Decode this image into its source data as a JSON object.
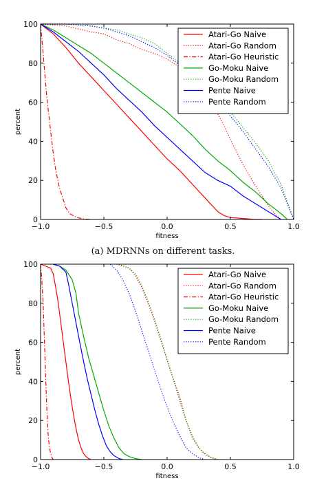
{
  "caption": "(a) MDRNNs on different tasks.",
  "chart_data": [
    {
      "type": "line",
      "xlabel": "fitness",
      "ylabel": "percent",
      "xlim": [
        -1.0,
        1.0
      ],
      "ylim": [
        0,
        100
      ],
      "xticks": [
        "−1.0",
        "−0.5",
        "0.0",
        "0.5",
        "1.0"
      ],
      "yticks": [
        "0",
        "20",
        "40",
        "60",
        "80",
        "100"
      ],
      "grid": false,
      "legend_position": "top-right",
      "series": [
        {
          "name": "Atari-Go Naive",
          "color": "#ff0000",
          "style": "solid",
          "x": [
            -1.0,
            -0.9,
            -0.8,
            -0.7,
            -0.6,
            -0.5,
            -0.4,
            -0.3,
            -0.2,
            -0.1,
            0.0,
            0.1,
            0.2,
            0.3,
            0.4,
            0.45,
            0.5,
            0.6,
            0.7,
            0.75
          ],
          "y": [
            100,
            95,
            88,
            80,
            73,
            66,
            59,
            52,
            45,
            38,
            31,
            25,
            18,
            11,
            4,
            2,
            1,
            0.5,
            0,
            0
          ]
        },
        {
          "name": "Atari-Go Random",
          "color": "#ff0000",
          "style": "dotted",
          "x": [
            -1.0,
            -0.8,
            -0.6,
            -0.5,
            -0.4,
            -0.3,
            -0.2,
            -0.1,
            0.0,
            0.1,
            0.2,
            0.3,
            0.35,
            0.4,
            0.45,
            0.5,
            0.6,
            0.7,
            0.8,
            0.85,
            0.9
          ],
          "y": [
            100,
            99,
            96,
            95,
            92,
            90,
            87,
            85,
            82,
            78,
            72,
            63,
            58,
            54,
            48,
            41,
            28,
            17,
            7,
            3,
            0
          ]
        },
        {
          "name": "Atari-Go Heuristic",
          "color": "#ff0000",
          "style": "dashdot",
          "x": [
            -1.0,
            -0.98,
            -0.95,
            -0.92,
            -0.9,
            -0.88,
            -0.85,
            -0.82,
            -0.8,
            -0.77,
            -0.73,
            -0.7,
            -0.65,
            -0.6
          ],
          "y": [
            100,
            85,
            62,
            45,
            34,
            25,
            16,
            10,
            6,
            3,
            1.5,
            0.8,
            0.2,
            0
          ]
        },
        {
          "name": "Go-Moku Naive",
          "color": "#00aa00",
          "style": "solid",
          "x": [
            -1.0,
            -0.9,
            -0.8,
            -0.7,
            -0.6,
            -0.5,
            -0.4,
            -0.3,
            -0.2,
            -0.1,
            0.0,
            0.1,
            0.2,
            0.3,
            0.4,
            0.5,
            0.6,
            0.7,
            0.8,
            0.9,
            0.95
          ],
          "y": [
            100,
            97,
            93,
            89,
            85,
            80,
            75,
            70,
            65,
            60,
            55,
            49,
            43,
            36,
            30,
            25,
            19,
            14,
            8,
            3,
            0
          ]
        },
        {
          "name": "Go-Moku Random",
          "color": "#00aa00",
          "style": "dotted",
          "x": [
            -1.0,
            -0.8,
            -0.6,
            -0.5,
            -0.4,
            -0.3,
            -0.2,
            -0.1,
            0.0,
            0.1,
            0.2,
            0.3,
            0.4,
            0.5,
            0.6,
            0.7,
            0.8,
            0.9,
            0.95,
            1.0
          ],
          "y": [
            100,
            100,
            99,
            98,
            97,
            95,
            93,
            90,
            85,
            80,
            76,
            70,
            62,
            55,
            47,
            39,
            30,
            18,
            9,
            0
          ]
        },
        {
          "name": "Pente Naive",
          "color": "#0000ff",
          "style": "solid",
          "x": [
            -1.0,
            -0.9,
            -0.8,
            -0.7,
            -0.6,
            -0.5,
            -0.4,
            -0.3,
            -0.2,
            -0.1,
            0.0,
            0.1,
            0.2,
            0.3,
            0.4,
            0.5,
            0.6,
            0.7,
            0.8,
            0.85,
            0.9
          ],
          "y": [
            100,
            96,
            91,
            86,
            80,
            74,
            67,
            61,
            55,
            48,
            42,
            36,
            30,
            24,
            20,
            17,
            12,
            8,
            4,
            2,
            0
          ]
        },
        {
          "name": "Pente Random",
          "color": "#0000ff",
          "style": "dotted",
          "x": [
            -1.0,
            -0.8,
            -0.6,
            -0.5,
            -0.4,
            -0.3,
            -0.2,
            -0.1,
            0.0,
            0.1,
            0.2,
            0.3,
            0.4,
            0.5,
            0.6,
            0.7,
            0.8,
            0.9,
            0.95,
            1.0
          ],
          "y": [
            100,
            100,
            99,
            98,
            96,
            94,
            91,
            88,
            84,
            79,
            74,
            68,
            61,
            53,
            45,
            36,
            27,
            16,
            8,
            0
          ]
        }
      ]
    },
    {
      "type": "line",
      "xlabel": "fitness",
      "ylabel": "percent",
      "xlim": [
        -1.0,
        1.0
      ],
      "ylim": [
        0,
        100
      ],
      "xticks": [
        "−1.0",
        "−0.5",
        "0.0",
        "0.5",
        "1.0"
      ],
      "yticks": [
        "0",
        "20",
        "40",
        "60",
        "80",
        "100"
      ],
      "grid": false,
      "legend_position": "top-right",
      "series": [
        {
          "name": "Atari-Go Naive",
          "color": "#ff0000",
          "style": "solid",
          "x": [
            -1.0,
            -0.92,
            -0.9,
            -0.88,
            -0.86,
            -0.84,
            -0.82,
            -0.8,
            -0.78,
            -0.76,
            -0.74,
            -0.72,
            -0.7,
            -0.68,
            -0.66,
            -0.64,
            -0.62,
            -0.6
          ],
          "y": [
            100,
            98,
            95,
            88,
            80,
            70,
            60,
            50,
            40,
            31,
            23,
            16,
            10,
            6,
            3,
            1.5,
            0.5,
            0
          ]
        },
        {
          "name": "Atari-Go Random",
          "color": "#ff0000",
          "style": "dotted",
          "x": [
            -0.4,
            -0.3,
            -0.25,
            -0.2,
            -0.15,
            -0.1,
            -0.05,
            0.0,
            0.05,
            0.1,
            0.15,
            0.2,
            0.25,
            0.3,
            0.35,
            0.4
          ],
          "y": [
            100,
            98,
            94,
            88,
            80,
            71,
            61,
            51,
            41,
            32,
            20,
            12,
            6,
            3,
            1,
            0
          ]
        },
        {
          "name": "Atari-Go Heuristic",
          "color": "#ff0000",
          "style": "dashdot",
          "x": [
            -1.0,
            -0.99,
            -0.98,
            -0.97,
            -0.96,
            -0.95,
            -0.94,
            -0.93,
            -0.92,
            -0.91,
            -0.9
          ],
          "y": [
            100,
            92,
            80,
            62,
            42,
            25,
            13,
            6,
            3,
            1,
            0
          ]
        },
        {
          "name": "Go-Moku Naive",
          "color": "#00aa00",
          "style": "solid",
          "x": [
            -0.9,
            -0.85,
            -0.8,
            -0.75,
            -0.72,
            -0.7,
            -0.66,
            -0.62,
            -0.58,
            -0.54,
            -0.5,
            -0.46,
            -0.42,
            -0.38,
            -0.34,
            -0.3,
            -0.25,
            -0.2
          ],
          "y": [
            100,
            99,
            97,
            92,
            85,
            75,
            63,
            52,
            43,
            34,
            25,
            17,
            11,
            6,
            3,
            1.5,
            0.5,
            0
          ]
        },
        {
          "name": "Go-Moku Random",
          "color": "#00aa00",
          "style": "dotted",
          "x": [
            -0.38,
            -0.3,
            -0.25,
            -0.2,
            -0.15,
            -0.1,
            -0.05,
            0.0,
            0.05,
            0.1,
            0.15,
            0.2,
            0.25,
            0.3,
            0.35,
            0.4
          ],
          "y": [
            100,
            98,
            95,
            89,
            81,
            72,
            62,
            51,
            41,
            30,
            20,
            11,
            6,
            2.5,
            1,
            0
          ]
        },
        {
          "name": "Pente Naive",
          "color": "#0000ff",
          "style": "solid",
          "x": [
            -0.9,
            -0.85,
            -0.8,
            -0.78,
            -0.75,
            -0.72,
            -0.69,
            -0.66,
            -0.63,
            -0.6,
            -0.57,
            -0.54,
            -0.51,
            -0.48,
            -0.45,
            -0.42,
            -0.38,
            -0.35
          ],
          "y": [
            100,
            99,
            96,
            90,
            80,
            70,
            60,
            50,
            41,
            33,
            25,
            18,
            12,
            7,
            4,
            2,
            0.5,
            0
          ]
        },
        {
          "name": "Pente Random",
          "color": "#0000ff",
          "style": "dotted",
          "x": [
            -0.45,
            -0.4,
            -0.35,
            -0.3,
            -0.25,
            -0.2,
            -0.15,
            -0.1,
            -0.05,
            0.0,
            0.05,
            0.1,
            0.15,
            0.2,
            0.25,
            0.3
          ],
          "y": [
            100,
            97,
            92,
            85,
            76,
            66,
            56,
            46,
            36,
            27,
            19,
            12,
            6,
            3,
            1,
            0
          ]
        }
      ]
    }
  ]
}
